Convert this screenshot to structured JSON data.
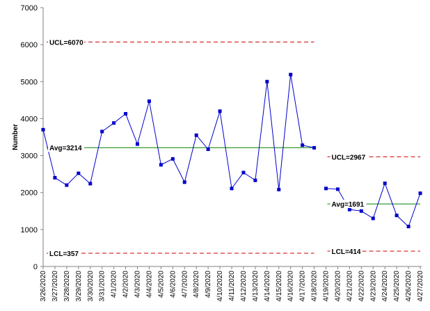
{
  "chart_data": {
    "type": "line",
    "ylabel": "Number",
    "ylim": [
      0,
      7000
    ],
    "yticks": [
      "0",
      "1000",
      "2000",
      "3000",
      "4000",
      "5000",
      "6000",
      "7000"
    ],
    "categories": [
      "3/26/2020",
      "3/27/2020",
      "3/28/2020",
      "3/29/2020",
      "3/30/2020",
      "3/31/2020",
      "4/1/2020",
      "4/2/2020",
      "4/3/2020",
      "4/4/2020",
      "4/5/2020",
      "4/6/2020",
      "4/7/2020",
      "4/8/2020",
      "4/9/2020",
      "4/10/2020",
      "4/11/2020",
      "4/12/2020",
      "4/13/2020",
      "4/14/2020",
      "4/15/2020",
      "4/16/2020",
      "4/17/2020",
      "4/18/2020",
      "4/19/2020",
      "4/20/2020",
      "4/21/2020",
      "4/22/2020",
      "4/23/2020",
      "4/24/2020",
      "4/25/2020",
      "4/26/2020",
      "4/27/2020"
    ],
    "values": [
      3700,
      2400,
      2200,
      2520,
      2240,
      3650,
      3880,
      4130,
      3310,
      4470,
      2750,
      2910,
      2280,
      3550,
      3170,
      4200,
      2110,
      2540,
      2330,
      5000,
      2080,
      5190,
      3280,
      3210,
      2110,
      2090,
      1540,
      1500,
      1300,
      2250,
      1380,
      1080,
      1980
    ],
    "phases": [
      {
        "start": 0,
        "end": 23,
        "avg": 3214,
        "ucl": 6070,
        "lcl": 357,
        "avg_label": "Avg=3214",
        "ucl_label": "UCL=6070",
        "lcl_label": "LCL=357"
      },
      {
        "start": 24,
        "end": 32,
        "avg": 1691,
        "ucl": 2967,
        "lcl": 414,
        "avg_label": "Avg=1691",
        "ucl_label": "UCL=2967",
        "lcl_label": "LCL=414"
      }
    ],
    "colors": {
      "series": "#0000CC",
      "avg": "#008000",
      "limits": "#CC0000"
    }
  }
}
